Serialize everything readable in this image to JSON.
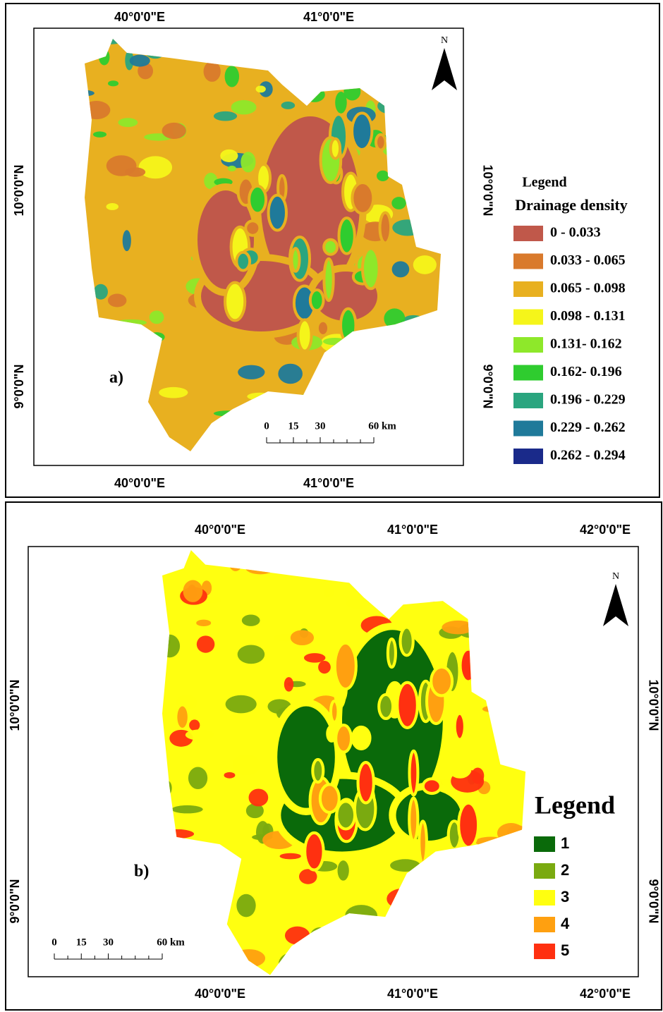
{
  "panels": [
    {
      "label": "a)",
      "x_labels_top": [
        "40°0'0\"E",
        "41°0'0\"E"
      ],
      "x_labels_bottom": [
        "40°0'0\"E",
        "41°0'0\"E"
      ],
      "y_labels_left": [
        "10°0'0\"N",
        "9°0'0\"N"
      ],
      "y_labels_right": [
        "10°0'0\"N",
        "9°0'0\"N"
      ],
      "north": "N",
      "scale_labels": [
        "0",
        "15",
        "30",
        "60 km"
      ],
      "legend": {
        "title": "Legend",
        "subtitle": "Drainage density",
        "items": [
          {
            "label": "0 - 0.033",
            "color": "#c0584a"
          },
          {
            "label": "0.033 - 0.065",
            "color": "#d97a2c"
          },
          {
            "label": "0.065 - 0.098",
            "color": "#e8b020"
          },
          {
            "label": "0.098 - 0.131",
            "color": "#f5f51a"
          },
          {
            "label": "0.131- 0.162",
            "color": "#8ee82a"
          },
          {
            "label": "0.162- 0.196",
            "color": "#2fcc2f"
          },
          {
            "label": "0.196 - 0.229",
            "color": "#2aa57f"
          },
          {
            "label": "0.229 - 0.262",
            "color": "#1f7a9a"
          },
          {
            "label": "0.262 - 0.294",
            "color": "#1a2a8a"
          }
        ]
      }
    },
    {
      "label": "b)",
      "x_labels_top": [
        "40°0'0\"E",
        "41°0'0\"E",
        "42°0'0\"E"
      ],
      "x_labels_bottom": [
        "40°0'0\"E",
        "41°0'0\"E",
        "42°0'0\"E"
      ],
      "y_labels_left": [
        "10°0'0\"N",
        "9°0'0\"N"
      ],
      "y_labels_right": [
        "10°0'0\"N",
        "9°0'0\"N"
      ],
      "north": "N",
      "scale_labels": [
        "0",
        "15",
        "30",
        "60 km"
      ],
      "legend": {
        "title": "Legend",
        "items": [
          {
            "label": "1",
            "color": "#0a6a0a"
          },
          {
            "label": "2",
            "color": "#7aaa10"
          },
          {
            "label": "3",
            "color": "#ffff10"
          },
          {
            "label": "4",
            "color": "#ffa010"
          },
          {
            "label": "5",
            "color": "#ff3010"
          }
        ]
      }
    }
  ]
}
